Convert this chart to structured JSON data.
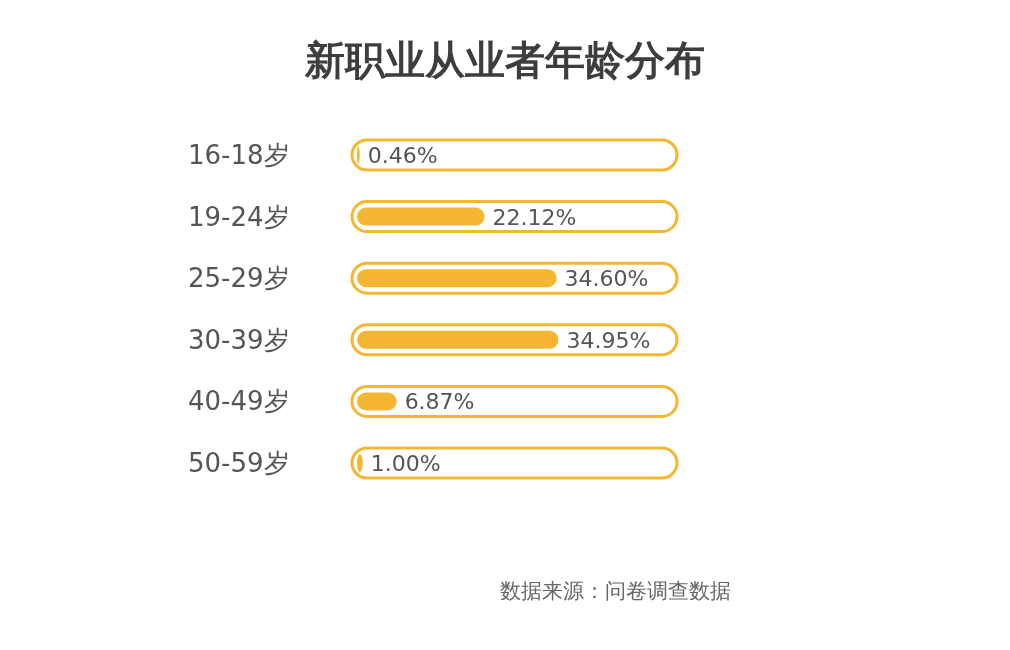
{
  "chart_data": {
    "type": "bar",
    "orientation": "horizontal",
    "title": "新职业从业者年龄分布",
    "categories": [
      "16-18岁",
      "19-24岁",
      "25-29岁",
      "30-39岁",
      "40-49岁",
      "50-59岁"
    ],
    "values": [
      0.46,
      22.12,
      34.6,
      34.95,
      6.87,
      1.0
    ],
    "value_labels": [
      "0.46%",
      "22.12%",
      "34.60%",
      "34.95%",
      "6.87%",
      "1.00%"
    ],
    "color": "#f5b731",
    "annotations": [
      "数据来源：问卷调查数据"
    ]
  }
}
